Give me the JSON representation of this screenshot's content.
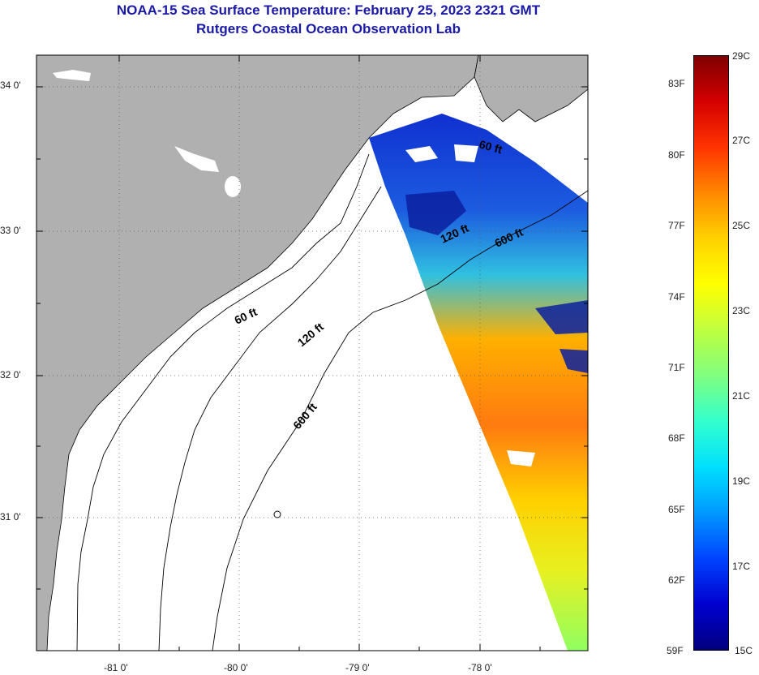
{
  "header": {
    "title": "NOAA-15 Sea Surface Temperature:  February 25, 2023 2321 GMT",
    "subtitle": "Rutgers Coastal Ocean Observation Lab"
  },
  "map": {
    "lat_ticks": [
      "34 0'",
      "33 0'",
      "32 0'",
      "31 0'"
    ],
    "lon_ticks": [
      "-81 0'",
      "-80 0'",
      "-79 0'",
      "-78 0'"
    ],
    "contour_labels": [
      {
        "id": "60ft-north",
        "text": "60 ft"
      },
      {
        "id": "120ft-north",
        "text": "120 ft"
      },
      {
        "id": "600ft-north",
        "text": "600 ft"
      },
      {
        "id": "60ft-south",
        "text": "60 ft"
      },
      {
        "id": "120ft-south",
        "text": "120 ft"
      },
      {
        "id": "600ft-south",
        "text": "600 ft"
      }
    ],
    "colors": {
      "land": "#b0b0b0",
      "ocean": "#ffffff",
      "contour": "#000000",
      "grid": "#555555"
    }
  },
  "colorbar": {
    "fahrenheit": [
      "83F",
      "80F",
      "77F",
      "74F",
      "71F",
      "68F",
      "65F",
      "62F",
      "59F"
    ],
    "celsius": [
      "29C",
      "27C",
      "25C",
      "23C",
      "21C",
      "19C",
      "17C",
      "15C"
    ],
    "stops": [
      "#7f0000",
      "#d40000",
      "#ff3300",
      "#ff8800",
      "#ffd200",
      "#ffff00",
      "#bfff3f",
      "#7fff7f",
      "#33ffcc",
      "#00e0ff",
      "#0099ff",
      "#0044ff",
      "#0000d0",
      "#000080"
    ]
  }
}
